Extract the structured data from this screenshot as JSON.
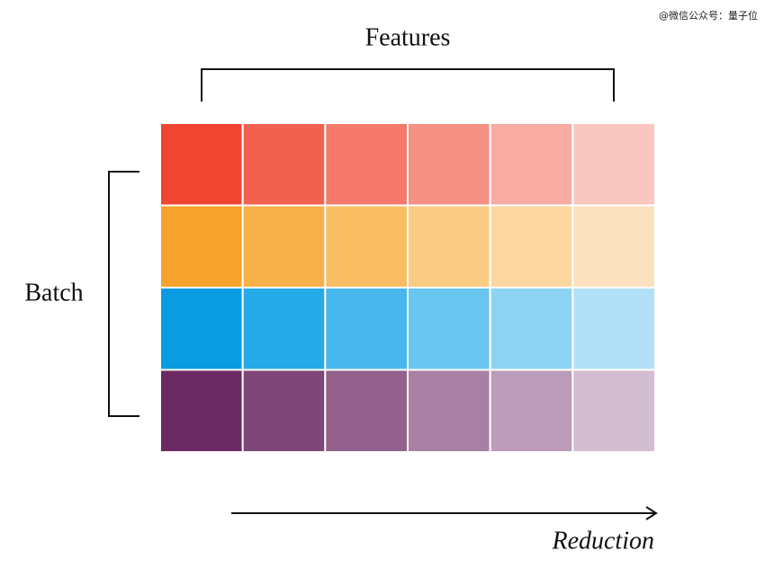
{
  "watermark": "@微信公众号：量子位",
  "top_label": "Features",
  "left_label": "Batch",
  "arrow_label": "Reduction"
}
